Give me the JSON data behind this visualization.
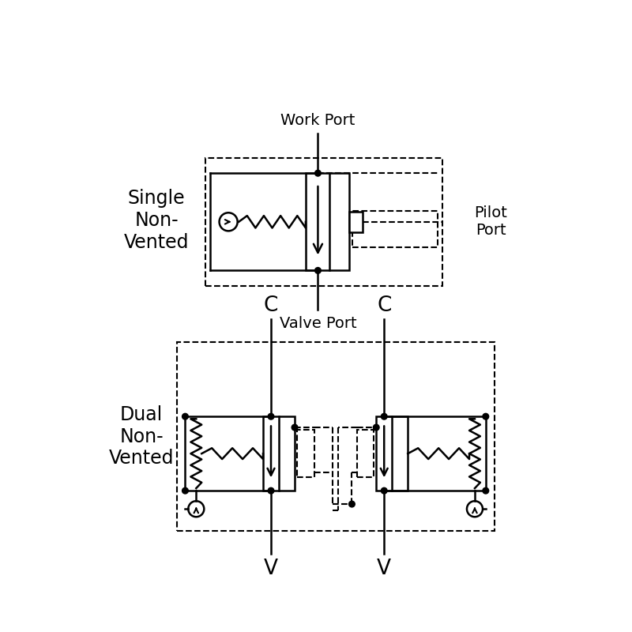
{
  "bg_color": "#ffffff",
  "line_color": "#000000",
  "lw": 1.8,
  "dlw": 1.5,
  "top_label": "Single\nNon-\nVented",
  "bottom_label": "Dual\nNon-\nVented",
  "work_port_label": "Work Port",
  "valve_port_label": "Valve Port",
  "pilot_port_label": "Pilot\nPort",
  "c_label": "C",
  "v_label": "V",
  "label_fontsize": 17,
  "port_fontsize": 14
}
